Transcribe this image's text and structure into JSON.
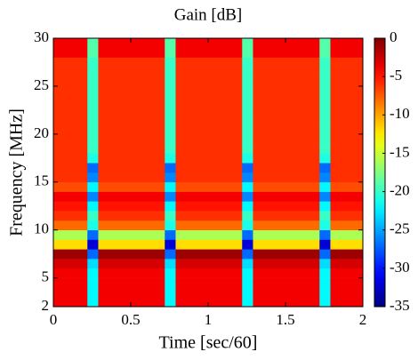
{
  "chart_data": {
    "type": "heatmap",
    "title": "Gain [dB]",
    "x_label": "Time [sec/60]",
    "y_label": "Frequency [MHz]",
    "colormap": "jet",
    "x": [
      0,
      0.22,
      0.29,
      0.72,
      0.79,
      1.22,
      1.29,
      1.72,
      1.79,
      2
    ],
    "y": [
      2,
      3,
      4,
      5,
      6,
      7,
      8,
      9,
      10,
      11,
      12,
      13,
      14,
      15,
      16,
      17,
      18,
      19,
      20,
      21,
      22,
      23,
      24,
      25,
      26,
      27,
      28,
      29,
      30
    ],
    "z": [
      [
        -4,
        -22,
        -4,
        -22,
        -4,
        -22,
        -4,
        -22,
        -4
      ],
      [
        -4,
        -22,
        -4,
        -22,
        -4,
        -22,
        -4,
        -22,
        -4
      ],
      [
        -4,
        -22,
        -4,
        -22,
        -4,
        -22,
        -4,
        -22,
        -4
      ],
      [
        -4,
        -22,
        -4,
        -22,
        -4,
        -22,
        -4,
        -22,
        -4
      ],
      [
        -3,
        -23,
        -3,
        -23,
        -3,
        -23,
        -3,
        -23,
        -3
      ],
      [
        -1,
        -27,
        -1,
        -27,
        -1,
        -27,
        -1,
        -27,
        -1
      ],
      [
        -12,
        -32,
        -12,
        -32,
        -12,
        -32,
        -12,
        -32,
        -12
      ],
      [
        -16,
        -27,
        -16,
        -27,
        -16,
        -27,
        -16,
        -27,
        -16
      ],
      [
        -8,
        -21,
        -8,
        -21,
        -8,
        -21,
        -8,
        -21,
        -8
      ],
      [
        -6,
        -20,
        -6,
        -20,
        -6,
        -20,
        -6,
        -20,
        -6
      ],
      [
        -5,
        -22,
        -5,
        -22,
        -5,
        -22,
        -5,
        -22,
        -5
      ],
      [
        -4,
        -26,
        -4,
        -26,
        -4,
        -26,
        -4,
        -26,
        -4
      ],
      [
        -7,
        -22,
        -7,
        -22,
        -7,
        -22,
        -7,
        -22,
        -7
      ],
      [
        -6,
        -26,
        -6,
        -26,
        -6,
        -26,
        -6,
        -26,
        -6
      ],
      [
        -6,
        -27,
        -6,
        -27,
        -6,
        -27,
        -6,
        -27,
        -6
      ],
      [
        -6,
        -21,
        -6,
        -21,
        -6,
        -21,
        -6,
        -21,
        -6
      ],
      [
        -6,
        -20,
        -6,
        -20,
        -6,
        -20,
        -6,
        -20,
        -6
      ],
      [
        -6,
        -20,
        -6,
        -20,
        -6,
        -20,
        -6,
        -20,
        -6
      ],
      [
        -6,
        -20,
        -6,
        -20,
        -6,
        -20,
        -6,
        -20,
        -6
      ],
      [
        -6,
        -20,
        -6,
        -20,
        -6,
        -20,
        -6,
        -20,
        -6
      ],
      [
        -6,
        -20,
        -6,
        -20,
        -6,
        -20,
        -6,
        -20,
        -6
      ],
      [
        -6,
        -20,
        -6,
        -20,
        -6,
        -20,
        -6,
        -20,
        -6
      ],
      [
        -6,
        -20,
        -6,
        -20,
        -6,
        -20,
        -6,
        -20,
        -6
      ],
      [
        -6,
        -20,
        -6,
        -20,
        -6,
        -20,
        -6,
        -20,
        -6
      ],
      [
        -6,
        -20,
        -6,
        -20,
        -6,
        -20,
        -6,
        -20,
        -6
      ],
      [
        -6,
        -20,
        -6,
        -20,
        -6,
        -20,
        -6,
        -20,
        -6
      ],
      [
        -4,
        -19,
        -4,
        -19,
        -4,
        -19,
        -4,
        -19,
        -4
      ],
      [
        -4,
        -19,
        -4,
        -19,
        -4,
        -19,
        -4,
        -19,
        -4
      ]
    ],
    "xlim": [
      0,
      2
    ],
    "xticks": [
      0,
      0.5,
      1,
      1.5,
      2
    ],
    "ylim": [
      2,
      30
    ],
    "yticks": [
      2,
      5,
      10,
      15,
      20,
      25,
      30
    ],
    "clim": [
      -35,
      0
    ],
    "cticks": [
      0,
      -5,
      -10,
      -15,
      -20,
      -25,
      -30,
      -35
    ]
  }
}
